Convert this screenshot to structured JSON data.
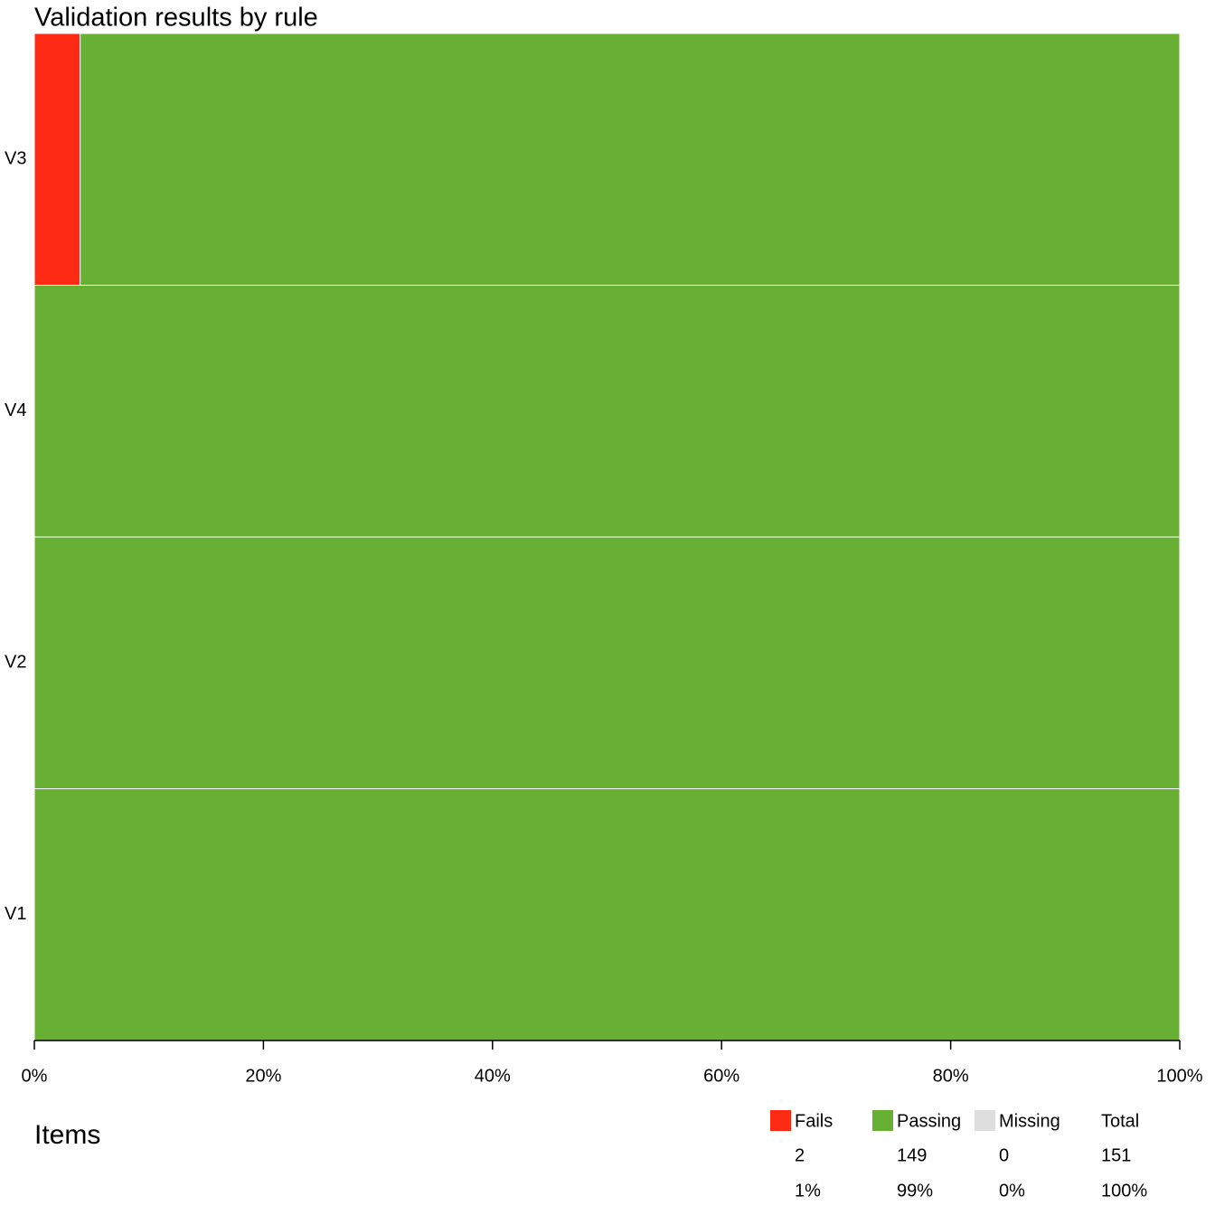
{
  "chart_data": {
    "type": "stacked-barh",
    "title": "Validation results by rule",
    "categories": [
      "V3",
      "V4",
      "V2",
      "V1"
    ],
    "series": [
      {
        "name": "Fails",
        "color": "#ff2a14",
        "values": [
          4,
          0,
          0,
          0
        ]
      },
      {
        "name": "Passing",
        "color": "#67b034",
        "values": [
          96,
          100,
          100,
          100
        ]
      },
      {
        "name": "Missing",
        "color": "#dedede",
        "values": [
          0,
          0,
          0,
          0
        ]
      }
    ],
    "xlim": [
      0,
      100
    ],
    "xticks": [
      {
        "value": 0,
        "label": "0%"
      },
      {
        "value": 20,
        "label": "20%"
      },
      {
        "value": 40,
        "label": "40%"
      },
      {
        "value": 60,
        "label": "60%"
      },
      {
        "value": 80,
        "label": "80%"
      },
      {
        "value": 100,
        "label": "100%"
      }
    ],
    "summary": {
      "title": "Items",
      "total_label": "Total",
      "counts": [
        2,
        149,
        0
      ],
      "total": 151,
      "percents": [
        "1%",
        "99%",
        "0%"
      ],
      "total_percent": "100%"
    }
  }
}
